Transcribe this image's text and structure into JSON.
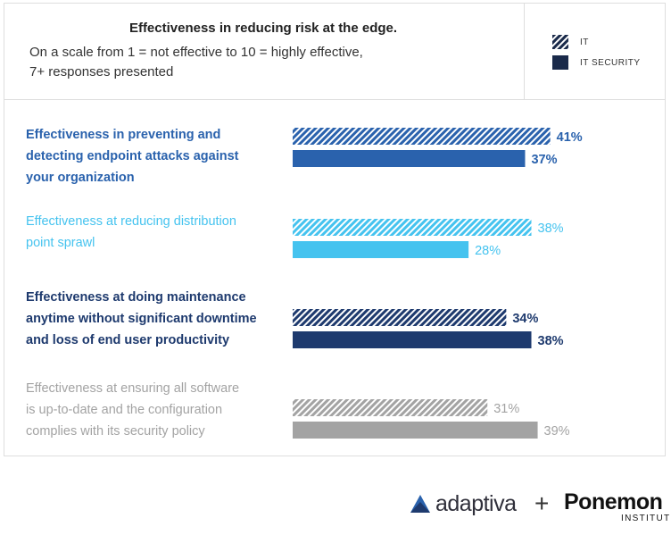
{
  "header": {
    "title": "Effectiveness in reducing risk at the edge.",
    "subtitle_line1": "On a scale from 1 = not effective to 10 = highly effective,",
    "subtitle_line2": "7+ responses presented"
  },
  "chart_data": {
    "type": "bar",
    "orientation": "horizontal",
    "title": "Effectiveness in reducing risk at the edge.",
    "legend": {
      "placement": "top-right"
    },
    "series": [
      {
        "name": "IT",
        "pattern": "hatched",
        "values": [
          41,
          38,
          34,
          31
        ]
      },
      {
        "name": "IT SECURITY",
        "pattern": "solid",
        "values": [
          37,
          28,
          38,
          39
        ]
      }
    ],
    "categories": [
      {
        "lines": [
          "Effectiveness in preventing and",
          "detecting endpoint attacks against",
          "your organization"
        ],
        "color": "#2a62ad",
        "bold": true,
        "value_labels": [
          "41%",
          "37%"
        ]
      },
      {
        "lines": [
          "Effectiveness at reducing distribution",
          "point sprawl"
        ],
        "color": "#45c3ef",
        "bold": false,
        "value_labels": [
          "38%",
          "28%"
        ]
      },
      {
        "lines": [
          "Effectiveness at doing maintenance",
          "anytime without significant downtime",
          "and loss of end user productivity"
        ],
        "color": "#1e3a6e",
        "bold": true,
        "value_labels": [
          "34%",
          "38%"
        ]
      },
      {
        "lines": [
          "Effectiveness at ensuring all software",
          "is up-to-date and the configuration",
          "complies with its security policy"
        ],
        "color": "#a3a3a3",
        "bold": false,
        "value_labels": [
          "31%",
          "39%"
        ]
      }
    ],
    "xlim": [
      0,
      100
    ],
    "grid": false
  },
  "logos": {
    "adaptiva": "adaptiva",
    "plus": "+",
    "ponemon": "Ponemon",
    "institute": "INSTITUTE"
  },
  "colors": {
    "legend_swatch": "#1a2a4a",
    "text_dark": "#222222"
  }
}
